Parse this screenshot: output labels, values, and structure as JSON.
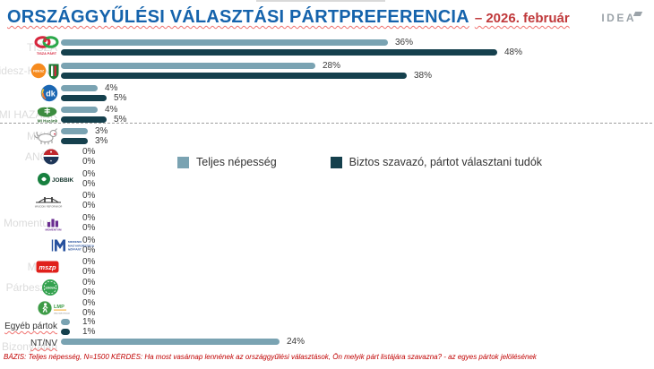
{
  "header": {
    "title": "ORSZÁGGYŰLÉSI VÁLASZTÁSI PÁRTPREFERENCIA",
    "date": "– 2026. február",
    "brand": "IDEA"
  },
  "legend": [
    {
      "label": "Teljes népesség",
      "color": "#7aa3b2"
    },
    {
      "label": "Biztos szavazó, pártot választani tudók",
      "color": "#15404d"
    }
  ],
  "chart_data": {
    "type": "bar",
    "orientation": "horizontal",
    "unit": "%",
    "title": "ORSZÁGGYŰLÉSI VÁLASZTÁSI PÁRTPREFERENCIA – 2026. február",
    "categories": [
      "TISZA",
      "Fidesz-KDNP",
      "DK",
      "Mi Hazánk",
      "MKKP",
      "ANÖM",
      "Jobbik",
      "Második Reformkor",
      "Momentum",
      "Mindenki Magyarországa Néppárt",
      "MSZP",
      "Párbeszéd",
      "LMP",
      "Egyéb pártok",
      "NT/NV"
    ],
    "series": [
      {
        "name": "Teljes népesség",
        "color": "#7aa3b2",
        "values": [
          36,
          28,
          4,
          4,
          3,
          0,
          0,
          0,
          0,
          0,
          0,
          0,
          0,
          1,
          24
        ]
      },
      {
        "name": "Biztos szavazó, pártot választani tudók",
        "color": "#15404d",
        "values": [
          48,
          38,
          5,
          5,
          3,
          0,
          0,
          0,
          0,
          0,
          0,
          0,
          0,
          1,
          null
        ]
      }
    ],
    "value_labels_shown": true,
    "threshold_separator_after_index": 3,
    "xlim": [
      0,
      55
    ],
    "grid": false,
    "legend_position": "inside-plot-middle"
  },
  "rows": [
    {
      "id": "tisza",
      "faded_label": "TISZA",
      "logo": "tisza",
      "total": 36,
      "certain": 48
    },
    {
      "id": "fidesz-kdnp",
      "faded_label": "Fidesz-KDNP",
      "logo": "fidesz",
      "total": 28,
      "certain": 38
    },
    {
      "id": "dk",
      "faded_label": "DK",
      "logo": "dk",
      "total": 4,
      "certain": 5
    },
    {
      "id": "mi-hazank",
      "faded_label": "MI HAZÁNK",
      "logo": "mihazank",
      "total": 4,
      "certain": 5
    },
    {
      "id": "mkkp",
      "faded_label": "MKKP",
      "logo": "mkkp",
      "total": 3,
      "certain": 3
    },
    {
      "id": "anom",
      "faded_label": "ANÖM",
      "logo": "badge",
      "total": 0,
      "certain": 0
    },
    {
      "id": "jobbik",
      "faded_label": "",
      "logo": "jobbik",
      "total": 0,
      "certain": 0
    },
    {
      "id": "masodik-reformkor",
      "faded_label": "",
      "logo": "bridge",
      "total": 0,
      "certain": 0
    },
    {
      "id": "momentum",
      "faded_label": "Momentum",
      "logo": "momentum",
      "total": 0,
      "certain": 0
    },
    {
      "id": "mmn",
      "faded_label": "",
      "logo": "mmn",
      "total": 0,
      "certain": 0
    },
    {
      "id": "mszp",
      "faded_label": "MSZP",
      "logo": "mszp",
      "total": 0,
      "certain": 0
    },
    {
      "id": "parbeszed",
      "faded_label": "Párbeszéd",
      "logo": "parbeszed",
      "total": 0,
      "certain": 0
    },
    {
      "id": "lmp",
      "faded_label": "",
      "logo": "lmp",
      "total": 0,
      "certain": 0
    },
    {
      "id": "egyeb-partok",
      "faded_label": "",
      "text_label": "Egyéb pártok",
      "total": 1,
      "certain": 1
    },
    {
      "id": "ntnv",
      "faded_label": "Bizonytalan",
      "text_label": "NT/NV",
      "total": 24,
      "certain": null
    }
  ],
  "footer": {
    "text": "BÁZIS: Teljes népesség, N=1500  KÉRDÉS:  Ha most vasárnap lennének az országgyűlési választások, Ön melyik párt listájára szavazna? - az egyes pártok jelölésének"
  }
}
